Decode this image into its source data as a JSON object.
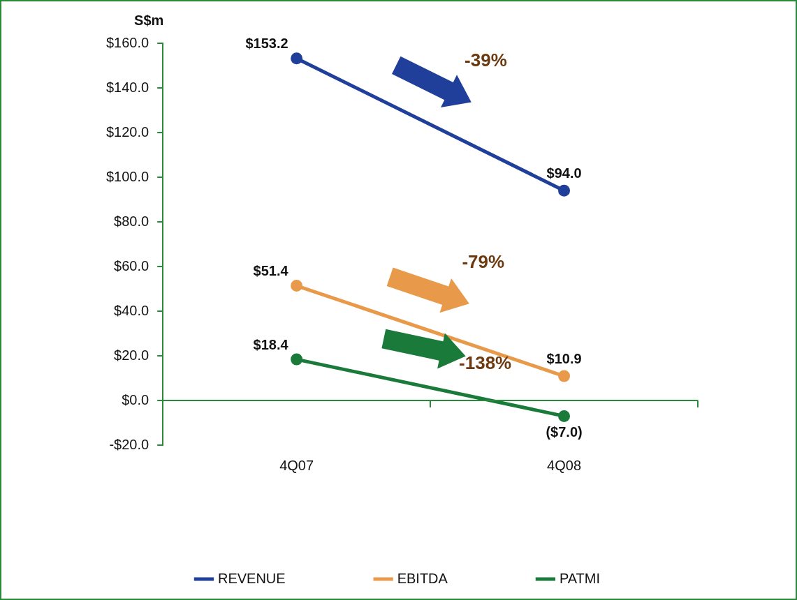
{
  "chart_data": {
    "type": "line",
    "ylabel": "S$m",
    "categories": [
      "4Q07",
      "4Q08"
    ],
    "series": [
      {
        "name": "REVENUE",
        "color": "#1f3f9a",
        "values": [
          153.2,
          94.0
        ],
        "value_labels": [
          "$153.2",
          "$94.0"
        ]
      },
      {
        "name": "EBITDA",
        "color": "#e89a4a",
        "values": [
          51.4,
          10.9
        ],
        "value_labels": [
          "$51.4",
          "$10.9"
        ]
      },
      {
        "name": "PATMI",
        "color": "#1a7a3a",
        "values": [
          18.4,
          -7.0
        ],
        "value_labels": [
          "$18.4",
          "($7.0)"
        ]
      }
    ],
    "ylim": [
      -20,
      160
    ],
    "yticks": [
      {
        "value": -20,
        "label": "-$20.0"
      },
      {
        "value": 0,
        "label": "$0.0"
      },
      {
        "value": 20,
        "label": "$20.0"
      },
      {
        "value": 40,
        "label": "$40.0"
      },
      {
        "value": 60,
        "label": "$60.0"
      },
      {
        "value": 80,
        "label": "$80.0"
      },
      {
        "value": 100,
        "label": "$100.0"
      },
      {
        "value": 120,
        "label": "$120.0"
      },
      {
        "value": 140,
        "label": "$140.0"
      },
      {
        "value": 160,
        "label": "$160.0"
      }
    ],
    "annotations": [
      "-39%",
      "-79%",
      "-138%"
    ],
    "ref_lines": [
      {
        "axis": "y",
        "value": 0,
        "color": "#2a8a3a"
      }
    ],
    "legend": "bottom",
    "grid": false,
    "marker": "circle",
    "line_style": "solid"
  }
}
